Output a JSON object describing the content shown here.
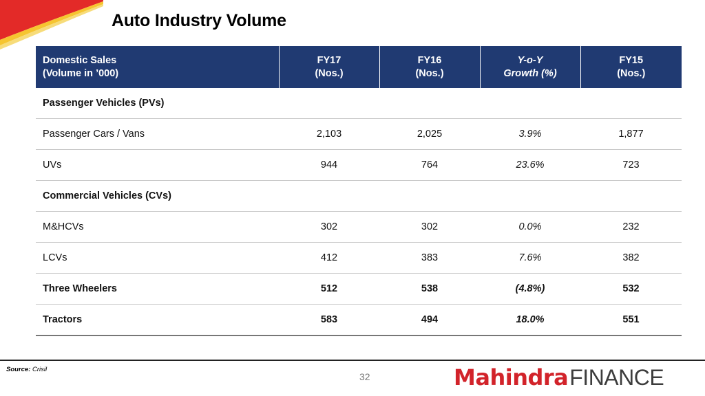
{
  "title": "Auto Industry Volume",
  "table": {
    "headers": [
      {
        "line1": "Domestic Sales",
        "line2": "(Volume in ’000)"
      },
      {
        "line1": "FY17",
        "line2": "(Nos.)"
      },
      {
        "line1": "FY16",
        "line2": "(Nos.)"
      },
      {
        "line1": "Y-o-Y",
        "line2": "Growth (%)"
      },
      {
        "line1": "FY15",
        "line2": "(Nos.)"
      }
    ],
    "sections": {
      "pv": "Passenger Vehicles (PVs)",
      "cv": "Commercial Vehicles (CVs)"
    },
    "rows": [
      {
        "label": "Passenger Cars / Vans",
        "fy17": "2,103",
        "fy16": "2,025",
        "yoy": "3.9%",
        "fy15": "1,877"
      },
      {
        "label": "UVs",
        "fy17": "944",
        "fy16": "764",
        "yoy": "23.6%",
        "fy15": "723"
      },
      {
        "label": "M&HCVs",
        "fy17": "302",
        "fy16": "302",
        "yoy": "0.0%",
        "fy15": "232"
      },
      {
        "label": "LCVs",
        "fy17": "412",
        "fy16": "383",
        "yoy": "7.6%",
        "fy15": "382"
      },
      {
        "label": "Three Wheelers",
        "fy17": "512",
        "fy16": "538",
        "yoy": "(4.8%)",
        "fy15": "532"
      },
      {
        "label": "Tractors",
        "fy17": "583",
        "fy16": "494",
        "yoy": "18.0%",
        "fy15": "551"
      }
    ]
  },
  "footer": {
    "source_label": "Source:",
    "source_value": "Crisil",
    "page_number": "32",
    "logo_brand": "Mahindra",
    "logo_suffix": "FINANCE"
  },
  "colors": {
    "header_bg": "#203a72",
    "accent_red": "#d2232a",
    "accent_yellow": "#f2c230"
  }
}
